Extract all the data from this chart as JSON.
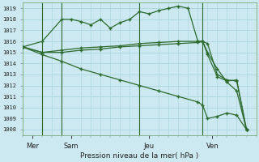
{
  "background_color": "#cce8f0",
  "grid_color": "#b0d8e0",
  "line_color": "#2d6a2d",
  "title": "Pression niveau de la mer( hPa )",
  "ylim": [
    1007.5,
    1019.5
  ],
  "yticks": [
    1008,
    1009,
    1010,
    1011,
    1012,
    1013,
    1014,
    1015,
    1016,
    1017,
    1018,
    1019
  ],
  "xlim": [
    0,
    24
  ],
  "xlabel_days": [
    "Mer",
    "Sam",
    "Jeu",
    "Ven"
  ],
  "xlabel_x_pos": [
    1.0,
    5.0,
    13.0,
    19.5
  ],
  "vline_x": [
    2.0,
    4.0,
    12.0,
    18.5
  ],
  "num_x_minor": 24,
  "series": [
    {
      "x": [
        0,
        2,
        4,
        6,
        8,
        10,
        12,
        14,
        16,
        18,
        18.5,
        19,
        20,
        21,
        22,
        23
      ],
      "y": [
        1015.5,
        1015.0,
        1015.0,
        1015.2,
        1015.3,
        1015.5,
        1015.6,
        1015.7,
        1015.8,
        1015.9,
        1016.0,
        1015.0,
        1013.5,
        1012.3,
        1011.5,
        1008.0
      ],
      "marker": "+",
      "markersize": 3,
      "linewidth": 0.9
    },
    {
      "x": [
        0,
        2,
        4,
        6,
        8,
        10,
        12,
        14,
        16,
        18,
        18.5,
        19,
        20,
        21,
        22,
        23
      ],
      "y": [
        1015.5,
        1015.0,
        1015.2,
        1015.4,
        1015.5,
        1015.6,
        1015.8,
        1015.9,
        1016.0,
        1016.0,
        1016.0,
        1014.8,
        1012.8,
        1012.4,
        1012.5,
        1008.0
      ],
      "marker": "+",
      "markersize": 3,
      "linewidth": 0.9
    },
    {
      "x": [
        0,
        2,
        4,
        5,
        6,
        7,
        8,
        9,
        10,
        11,
        12,
        13,
        14,
        15,
        16,
        17,
        18,
        18.5,
        19,
        20,
        21,
        22,
        23
      ],
      "y": [
        1015.5,
        1016.0,
        1018.0,
        1018.0,
        1017.8,
        1017.5,
        1018.0,
        1017.2,
        1017.7,
        1018.0,
        1018.7,
        1018.5,
        1018.8,
        1019.0,
        1019.2,
        1019.0,
        1016.0,
        1016.0,
        1015.8,
        1013.0,
        1012.5,
        1012.4,
        1008.0
      ],
      "marker": "+",
      "markersize": 3,
      "linewidth": 0.9
    },
    {
      "x": [
        0,
        2,
        4,
        6,
        8,
        10,
        12,
        14,
        16,
        18,
        18.5,
        19,
        20,
        21,
        22,
        23
      ],
      "y": [
        1015.5,
        1014.8,
        1014.2,
        1013.5,
        1013.0,
        1012.5,
        1012.0,
        1011.5,
        1011.0,
        1010.5,
        1010.2,
        1009.0,
        1009.2,
        1009.5,
        1009.3,
        1008.0
      ],
      "marker": "+",
      "markersize": 3,
      "linewidth": 0.9
    }
  ]
}
